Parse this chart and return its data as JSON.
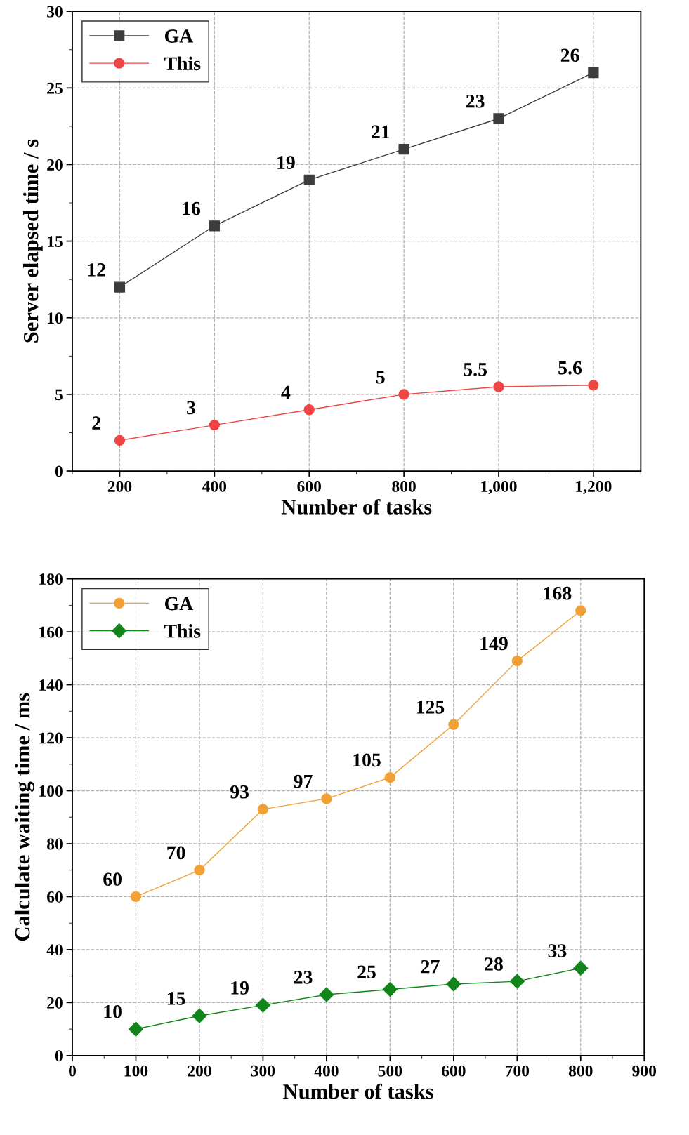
{
  "chart_data": [
    {
      "type": "line",
      "xlabel": "Number of tasks",
      "ylabel": "Server elapsed time / s",
      "x": [
        200,
        400,
        600,
        800,
        1000,
        1200
      ],
      "series": [
        {
          "name": "GA",
          "color": "#3c3c3c",
          "marker": "square",
          "values": [
            12,
            16,
            19,
            21,
            23,
            26
          ]
        },
        {
          "name": "This",
          "color": "#f04545",
          "marker": "circle",
          "values": [
            2,
            3,
            4,
            5,
            5.5,
            5.6
          ]
        }
      ],
      "xlim": [
        100,
        1300
      ],
      "xticks": [
        200,
        400,
        600,
        800,
        {
          "value": 1000,
          "label": "1,000"
        },
        {
          "value": 1200,
          "label": "1,200"
        }
      ],
      "ylim": [
        0,
        30
      ],
      "yticks": [
        0,
        5,
        10,
        15,
        20,
        25,
        30
      ],
      "grid": true,
      "legend": "top left",
      "data_labels": true,
      "line_style": "solid"
    },
    {
      "type": "line",
      "xlabel": "Number of tasks",
      "ylabel": "Calculate waiting time / ms",
      "x": [
        100,
        200,
        300,
        400,
        500,
        600,
        700,
        800
      ],
      "series": [
        {
          "name": "GA",
          "color": "#f0a035",
          "marker": "circle",
          "values": [
            60,
            70,
            93,
            97,
            105,
            125,
            149,
            168
          ]
        },
        {
          "name": "This",
          "color": "#12851a",
          "marker": "diamond",
          "values": [
            10,
            15,
            19,
            23,
            25,
            27,
            28,
            33
          ]
        }
      ],
      "xlim": [
        0,
        900
      ],
      "xticks": [
        0,
        100,
        200,
        300,
        400,
        500,
        600,
        700,
        800,
        900
      ],
      "ylim": [
        0,
        180
      ],
      "yticks": [
        0,
        20,
        40,
        60,
        80,
        100,
        120,
        140,
        160,
        180
      ],
      "grid": true,
      "legend": "top left",
      "data_labels": true,
      "line_style": "solid"
    }
  ]
}
